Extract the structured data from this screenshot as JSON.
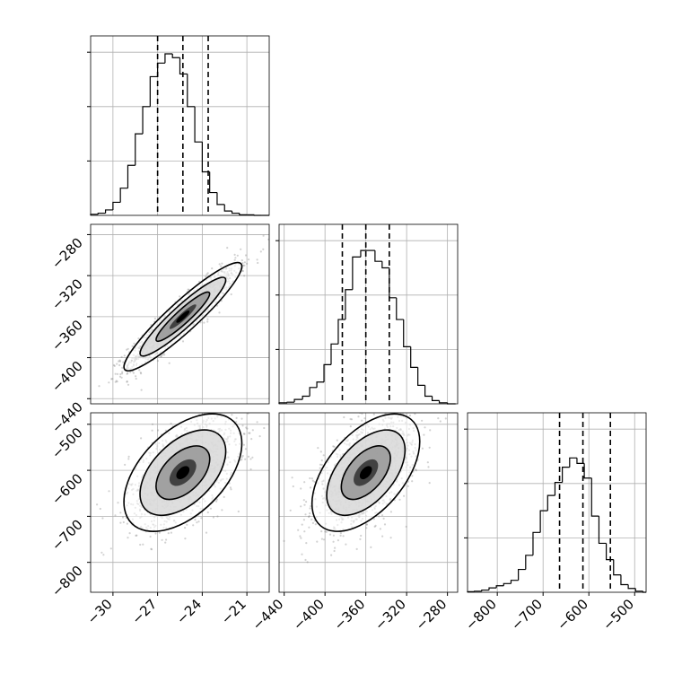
{
  "chart_data": {
    "type": "corner",
    "grid": true,
    "colors": {
      "hist": "#000000",
      "points": "#7f7f7f",
      "grid": "#b0b0b0",
      "contour": "#000000"
    },
    "parameters": [
      {
        "range": [
          -31.5,
          -19.5
        ],
        "ticks": [
          -30,
          -27,
          -24,
          -21
        ],
        "tick_labels": [
          "−30",
          "−27",
          "−24",
          "−21"
        ]
      },
      {
        "range": [
          -445,
          -270
        ],
        "ticks": [
          -440,
          -400,
          -360,
          -320,
          -280
        ],
        "tick_labels": [
          "−440",
          "−400",
          "−360",
          "−320",
          "−280"
        ]
      },
      {
        "range": [
          -865,
          -475
        ],
        "ticks": [
          -800,
          -700,
          -600,
          -500
        ],
        "tick_labels": [
          "−800",
          "−700",
          "−600",
          "−500"
        ]
      }
    ],
    "histograms": [
      {
        "param": 0,
        "bin_edges": [
          -31.5,
          -31.0,
          -30.5,
          -30.0,
          -29.5,
          -29.0,
          -28.5,
          -28.0,
          -27.5,
          -27.0,
          -26.5,
          -26.0,
          -25.5,
          -25.0,
          -24.5,
          -24.0,
          -23.5,
          -23.0,
          -22.5,
          -22.0,
          -21.5,
          -21.0,
          -20.5,
          -20.0,
          -19.5
        ],
        "counts": [
          2,
          4,
          10,
          24,
          50,
          92,
          150,
          200,
          255,
          280,
          297,
          290,
          260,
          200,
          135,
          80,
          42,
          20,
          8,
          4,
          1,
          1,
          0,
          0
        ],
        "quantiles": [
          -27.0,
          -25.3,
          -23.6
        ],
        "y_ticks": [
          100,
          200,
          300
        ]
      },
      {
        "param": 1,
        "bin_edges": [
          -445,
          -437,
          -430,
          -422,
          -415,
          -408,
          -401,
          -394,
          -387,
          -380,
          -373,
          -365,
          -358,
          -351,
          -344,
          -337,
          -330,
          -323,
          -316,
          -309,
          -302,
          -295,
          -288,
          -280,
          -272
        ],
        "counts": [
          2,
          3,
          8,
          14,
          30,
          40,
          72,
          110,
          155,
          210,
          270,
          282,
          282,
          262,
          250,
          195,
          155,
          105,
          67,
          34,
          14,
          6,
          2,
          0
        ],
        "quantiles": [
          -383,
          -360,
          -337
        ],
        "y_ticks": [
          100,
          200,
          300
        ]
      },
      {
        "param": 2,
        "bin_edges": [
          -865,
          -850,
          -834,
          -818,
          -802,
          -786,
          -770,
          -754,
          -738,
          -722,
          -706,
          -690,
          -674,
          -658,
          -642,
          -626,
          -610,
          -594,
          -578,
          -562,
          -546,
          -530,
          -514,
          -498,
          -482,
          -475
        ],
        "counts": [
          1,
          2,
          4,
          8,
          12,
          16,
          22,
          42,
          68,
          110,
          150,
          178,
          202,
          230,
          247,
          237,
          210,
          140,
          90,
          60,
          32,
          14,
          7,
          2,
          0
        ],
        "quantiles": [
          -664,
          -613,
          -553
        ],
        "y_ticks": [
          100,
          200,
          300
        ]
      }
    ],
    "pairs": [
      {
        "x_param": 0,
        "y_param": 1,
        "mean": [
          -25.3,
          -360
        ],
        "std": [
          1.8,
          24
        ],
        "correlation": 0.93
      },
      {
        "x_param": 0,
        "y_param": 2,
        "mean": [
          -25.3,
          -605
        ],
        "std": [
          1.8,
          58
        ],
        "correlation": 0.5
      },
      {
        "x_param": 1,
        "y_param": 2,
        "mean": [
          -360,
          -605
        ],
        "std": [
          24,
          58
        ],
        "correlation": 0.53
      }
    ]
  }
}
